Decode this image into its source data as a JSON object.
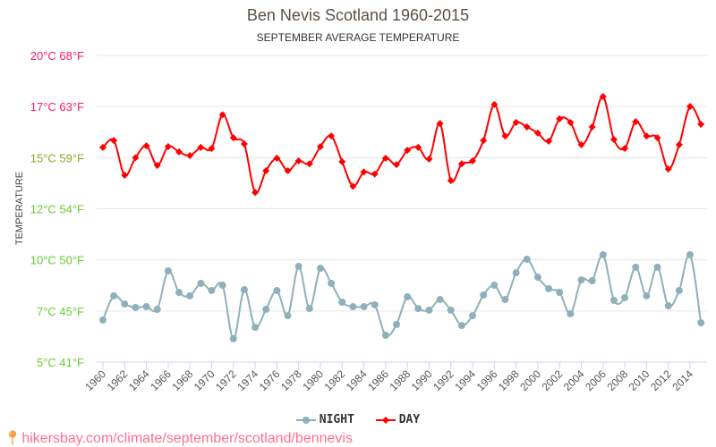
{
  "chart_data": {
    "type": "line",
    "title": "Ben Nevis Scotland 1960-2015",
    "subtitle": "SEPTEMBER AVERAGE TEMPERATURE",
    "ylabel": "TEMPERATURE",
    "ylim": [
      5,
      20
    ],
    "yticks": [
      {
        "value": 20,
        "label": "20°C 68°F",
        "color": "#ff1a66"
      },
      {
        "value": 17.5,
        "label": "17°C 63°F",
        "color": "#ff1a66"
      },
      {
        "value": 15,
        "label": "15°C 59°F",
        "color": "#88aa22"
      },
      {
        "value": 12.5,
        "label": "12°C 54°F",
        "color": "#66cc33"
      },
      {
        "value": 10,
        "label": "10°C 50°F",
        "color": "#66cc33"
      },
      {
        "value": 7.5,
        "label": "7°C 45°F",
        "color": "#66cc33"
      },
      {
        "value": 5,
        "label": "5°C 41°F",
        "color": "#66cc33"
      }
    ],
    "xticks": [
      "1960",
      "1962",
      "1964",
      "1966",
      "1968",
      "1970",
      "1972",
      "1974",
      "1976",
      "1978",
      "1980",
      "1982",
      "1984",
      "1986",
      "1988",
      "1990",
      "1992",
      "1994",
      "1996",
      "1998",
      "2000",
      "2002",
      "2004",
      "2006",
      "2008",
      "2010",
      "2012",
      "2014"
    ],
    "x_start": 1960,
    "x_end": 2015,
    "grid": true,
    "legend_position": "bottom",
    "series": [
      {
        "name": "NIGHT",
        "color": "#8fb0ba",
        "marker": "circle",
        "values": [
          7.06,
          8.24,
          7.84,
          7.67,
          7.71,
          7.58,
          9.46,
          8.41,
          8.24,
          8.85,
          8.5,
          8.76,
          6.14,
          8.54,
          6.7,
          7.58,
          8.5,
          7.27,
          9.68,
          7.62,
          9.59,
          8.85,
          7.93,
          7.71,
          7.71,
          7.8,
          6.31,
          6.84,
          8.19,
          7.62,
          7.54,
          8.06,
          7.54,
          6.79,
          7.27,
          8.28,
          8.76,
          8.06,
          9.37,
          10.03,
          9.15,
          8.59,
          8.41,
          7.36,
          9.02,
          8.98,
          10.25,
          8.02,
          8.15,
          9.64,
          8.24,
          9.64,
          7.75,
          8.5,
          10.25,
          6.92
        ]
      },
      {
        "name": "DAY",
        "color": "#ff0000",
        "marker": "diamond",
        "values": [
          15.5,
          15.84,
          14.14,
          15.0,
          15.58,
          14.62,
          15.54,
          15.28,
          15.1,
          15.5,
          15.45,
          17.1,
          15.97,
          15.67,
          13.3,
          14.36,
          14.97,
          14.36,
          14.84,
          14.7,
          15.54,
          16.06,
          14.8,
          13.6,
          14.3,
          14.2,
          14.97,
          14.66,
          15.36,
          15.5,
          14.93,
          16.67,
          13.88,
          14.7,
          14.84,
          15.84,
          17.6,
          16.06,
          16.72,
          16.5,
          16.2,
          15.8,
          16.9,
          16.72,
          15.63,
          16.5,
          17.99,
          15.89,
          15.45,
          16.76,
          16.06,
          15.97,
          14.44,
          15.63,
          17.5,
          16.63
        ]
      }
    ]
  },
  "footer": {
    "url": "hikersbay.com/climate/september/scotland/bennevis",
    "icon": "map-pin-icon"
  }
}
